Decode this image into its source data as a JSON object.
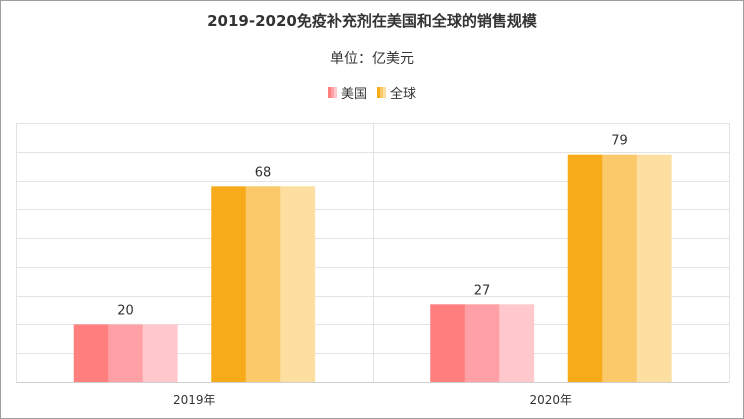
{
  "chart_data": {
    "type": "bar",
    "title": "2019-2020免疫补充剂在美国和全球的销售规模",
    "subtitle": "单位：亿美元",
    "categories": [
      "2019年",
      "2020年"
    ],
    "series": [
      {
        "name": "美国",
        "values": [
          20,
          27
        ],
        "colors": [
          "#ff7f7f",
          "#ffa0a6",
          "#ffc8cc"
        ]
      },
      {
        "name": "全球",
        "values": [
          68,
          79
        ],
        "colors": [
          "#f8ab18",
          "#fbc96a",
          "#fddfa1"
        ]
      }
    ],
    "ylim": [
      0,
      90
    ],
    "grid": true,
    "legend_position": "top-center"
  }
}
